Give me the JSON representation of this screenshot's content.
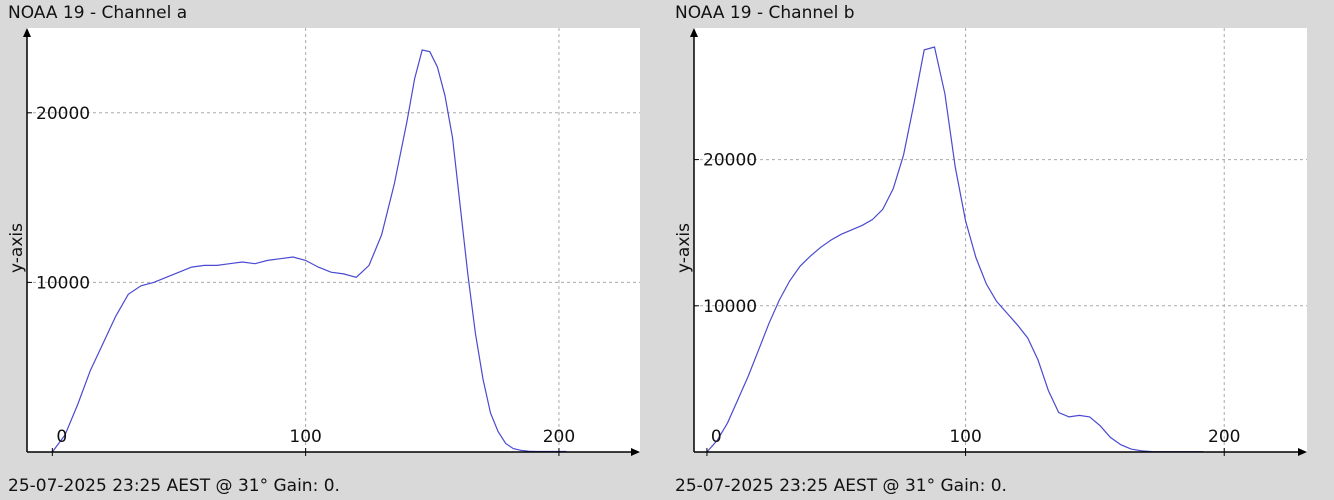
{
  "chart_data": [
    {
      "type": "line",
      "title": "NOAA 19 - Channel a",
      "footer": "25-07-2025 23:25 AEST @ 31° Gain: 0.",
      "ylabel": "y-axis",
      "xlim": [
        -10,
        232
      ],
      "ylim": [
        0,
        25000
      ],
      "xticks": [
        0,
        100,
        200
      ],
      "yticks": [
        10000,
        20000
      ],
      "grid": true,
      "line_color": "#4a4ad0",
      "series": [
        {
          "x": [
            0,
            5,
            10,
            15,
            20,
            25,
            30,
            35,
            40,
            45,
            50,
            55,
            60,
            65,
            70,
            75,
            80,
            85,
            90,
            95,
            100,
            105,
            110,
            115,
            120,
            125,
            130,
            135,
            140,
            143,
            146,
            149,
            152,
            155,
            158,
            161,
            164,
            167,
            170,
            173,
            176,
            179,
            182,
            185,
            188,
            191,
            194,
            197,
            200,
            203
          ],
          "y": [
            0,
            1000,
            2800,
            4800,
            6400,
            8000,
            9300,
            9800,
            10000,
            10300,
            10600,
            10900,
            11000,
            11000,
            11100,
            11200,
            11100,
            11300,
            11400,
            11500,
            11300,
            10900,
            10600,
            10500,
            10300,
            11000,
            12800,
            15800,
            19500,
            22000,
            23700,
            23600,
            22700,
            21000,
            18500,
            14500,
            10500,
            7000,
            4300,
            2300,
            1200,
            500,
            200,
            100,
            50,
            30,
            30,
            30,
            30,
            30
          ]
        }
      ]
    },
    {
      "type": "line",
      "title": "NOAA 19 - Channel b",
      "footer": "25-07-2025 23:25 AEST @ 31° Gain: 0.",
      "ylabel": "y-axis",
      "xlim": [
        -5,
        232
      ],
      "ylim": [
        0,
        29000
      ],
      "xticks": [
        0,
        100,
        200
      ],
      "yticks": [
        10000,
        20000
      ],
      "grid": true,
      "line_color": "#4a4ad0",
      "series": [
        {
          "x": [
            0,
            4,
            8,
            12,
            16,
            20,
            24,
            28,
            32,
            36,
            40,
            44,
            48,
            52,
            56,
            60,
            64,
            68,
            72,
            76,
            80,
            84,
            88,
            92,
            96,
            100,
            104,
            108,
            112,
            116,
            120,
            124,
            128,
            132,
            136,
            140,
            144,
            148,
            152,
            156,
            160,
            164,
            168,
            172,
            176,
            180,
            184,
            188,
            192
          ],
          "y": [
            0,
            800,
            2000,
            3600,
            5200,
            7000,
            8800,
            10400,
            11700,
            12700,
            13400,
            14000,
            14500,
            14900,
            15200,
            15500,
            15900,
            16600,
            18000,
            20300,
            23800,
            27500,
            27700,
            24500,
            19500,
            15800,
            13300,
            11500,
            10300,
            9500,
            8700,
            7800,
            6300,
            4200,
            2700,
            2400,
            2500,
            2400,
            1800,
            1000,
            500,
            200,
            80,
            30,
            20,
            20,
            20,
            20,
            20
          ]
        }
      ]
    }
  ]
}
